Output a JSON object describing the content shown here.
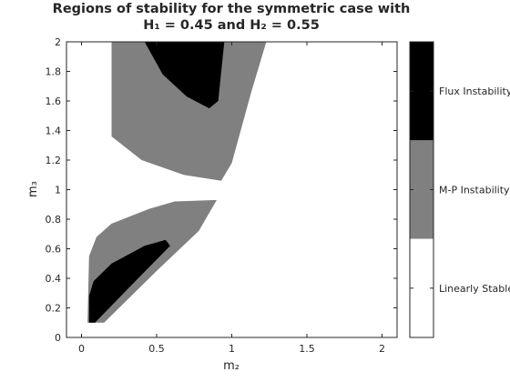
{
  "chart_data": {
    "type": "heatmap",
    "title_line1": "Regions of stability for the symmetric case with",
    "title_line2": "H₁ = 0.45 and H₂ = 0.55",
    "xlabel": "m₂",
    "ylabel": "m₃",
    "xlim": [
      -0.1,
      2.1
    ],
    "ylim": [
      0,
      2
    ],
    "xticks": [
      0,
      0.5,
      1,
      1.5,
      2
    ],
    "xtick_labels": [
      "0",
      "0.5",
      "1",
      "1.5",
      "2"
    ],
    "yticks": [
      0,
      0.2,
      0.4,
      0.6,
      0.8,
      1,
      1.2,
      1.4,
      1.6,
      1.8,
      2
    ],
    "ytick_labels": [
      "0",
      "0.2",
      "0.4",
      "0.6",
      "0.8",
      "1",
      "1.2",
      "1.4",
      "1.6",
      "1.8",
      "2"
    ],
    "colorbar": [
      {
        "label": "Flux Instability",
        "color": "#000000"
      },
      {
        "label": "M-P Instability",
        "color": "#808080"
      },
      {
        "label": "Linearly Stable",
        "color": "#ffffff"
      }
    ],
    "regions": [
      {
        "category": "M-P Instability",
        "color": "#808080",
        "polygon": [
          [
            0.2,
            2.0
          ],
          [
            1.23,
            2.0
          ],
          [
            1.13,
            1.66
          ],
          [
            1.0,
            1.18
          ],
          [
            0.93,
            1.06
          ],
          [
            0.68,
            1.1
          ],
          [
            0.4,
            1.2
          ],
          [
            0.2,
            1.36
          ],
          [
            0.2,
            2.0
          ]
        ]
      },
      {
        "category": "Flux Instability",
        "color": "#000000",
        "polygon": [
          [
            0.42,
            2.0
          ],
          [
            0.95,
            2.0
          ],
          [
            0.91,
            1.6
          ],
          [
            0.85,
            1.55
          ],
          [
            0.7,
            1.63
          ],
          [
            0.54,
            1.78
          ],
          [
            0.42,
            2.0
          ]
        ]
      },
      {
        "category": "M-P Instability",
        "color": "#808080",
        "polygon": [
          [
            0.04,
            0.1
          ],
          [
            0.15,
            0.1
          ],
          [
            0.5,
            0.45
          ],
          [
            0.78,
            0.72
          ],
          [
            0.9,
            0.93
          ],
          [
            0.62,
            0.92
          ],
          [
            0.45,
            0.87
          ],
          [
            0.2,
            0.77
          ],
          [
            0.1,
            0.68
          ],
          [
            0.05,
            0.55
          ],
          [
            0.04,
            0.1
          ]
        ]
      },
      {
        "category": "Flux Instability",
        "color": "#000000",
        "polygon": [
          [
            0.05,
            0.1
          ],
          [
            0.09,
            0.1
          ],
          [
            0.3,
            0.32
          ],
          [
            0.59,
            0.62
          ],
          [
            0.56,
            0.66
          ],
          [
            0.42,
            0.62
          ],
          [
            0.2,
            0.5
          ],
          [
            0.08,
            0.38
          ],
          [
            0.05,
            0.28
          ],
          [
            0.05,
            0.1
          ]
        ]
      }
    ]
  }
}
